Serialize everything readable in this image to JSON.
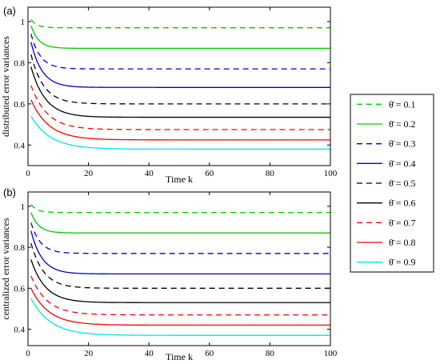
{
  "figure": {
    "legend_entries": [
      {
        "label": "θ̄ = 0.1",
        "color": "#00cc00",
        "style": "dashed"
      },
      {
        "label": "θ̄ = 0.2",
        "color": "#00cc00",
        "style": "solid"
      },
      {
        "label": "θ̄ = 0.3",
        "color": "#0000cc",
        "style": "dashed"
      },
      {
        "label": "θ̄ = 0.4",
        "color": "#0000cc",
        "style": "solid"
      },
      {
        "label": "θ̄ = 0.5",
        "color": "#000000",
        "style": "dashed"
      },
      {
        "label": "θ̄ = 0.6",
        "color": "#000000",
        "style": "solid"
      },
      {
        "label": "θ̄ = 0.7",
        "color": "#ff0000",
        "style": "dashed"
      },
      {
        "label": "θ̄ = 0.8",
        "color": "#ff0000",
        "style": "solid"
      },
      {
        "label": "θ̄ = 0.9",
        "color": "#00e5e5",
        "style": "solid"
      }
    ]
  },
  "chart_data": [
    {
      "type": "line",
      "panel_label": "(a)",
      "xlabel": "Time k",
      "ylabel": "distributed error variances",
      "xlim": [
        0,
        100
      ],
      "ylim": [
        0.3,
        1.07
      ],
      "xticks": [
        0,
        20,
        40,
        60,
        80,
        100
      ],
      "yticks": [
        0.4,
        0.6,
        0.8,
        1
      ],
      "ytick_labels": [
        "0.4",
        "0.6",
        "0.8",
        "1"
      ],
      "legend_position": "right, outside",
      "series": [
        {
          "name": "θ̄ = 0.1",
          "start": 1.01,
          "steady": 0.97
        },
        {
          "name": "θ̄ = 0.2",
          "start": 0.98,
          "steady": 0.87
        },
        {
          "name": "θ̄ = 0.3",
          "start": 0.94,
          "steady": 0.77
        },
        {
          "name": "θ̄ = 0.4",
          "start": 0.9,
          "steady": 0.68
        },
        {
          "name": "θ̄ = 0.5",
          "start": 0.84,
          "steady": 0.6
        },
        {
          "name": "θ̄ = 0.6",
          "start": 0.78,
          "steady": 0.535
        },
        {
          "name": "θ̄ = 0.7",
          "start": 0.69,
          "steady": 0.475
        },
        {
          "name": "θ̄ = 0.8",
          "start": 0.62,
          "steady": 0.425
        },
        {
          "name": "θ̄ = 0.9",
          "start": 0.54,
          "steady": 0.38
        }
      ]
    },
    {
      "type": "line",
      "panel_label": "(b)",
      "xlabel": "Time k",
      "ylabel": "centralized error variances",
      "xlim": [
        0,
        100
      ],
      "ylim": [
        0.32,
        1.07
      ],
      "xticks": [
        0,
        20,
        40,
        60,
        80,
        100
      ],
      "yticks": [
        0.4,
        0.6,
        0.8,
        1
      ],
      "ytick_labels": [
        "0.4",
        "0.6",
        "0.8",
        "1"
      ],
      "legend_position": "shared with panel (a)",
      "series": [
        {
          "name": "θ̄ = 0.1",
          "start": 1.01,
          "steady": 0.97
        },
        {
          "name": "θ̄ = 0.2",
          "start": 0.97,
          "steady": 0.87
        },
        {
          "name": "θ̄ = 0.3",
          "start": 0.92,
          "steady": 0.77
        },
        {
          "name": "θ̄ = 0.4",
          "start": 0.88,
          "steady": 0.67
        },
        {
          "name": "θ̄ = 0.5",
          "start": 0.82,
          "steady": 0.6
        },
        {
          "name": "θ̄ = 0.6",
          "start": 0.74,
          "steady": 0.53
        },
        {
          "name": "θ̄ = 0.7",
          "start": 0.66,
          "steady": 0.47
        },
        {
          "name": "θ̄ = 0.8",
          "start": 0.6,
          "steady": 0.42
        },
        {
          "name": "θ̄ = 0.9",
          "start": 0.55,
          "steady": 0.37
        }
      ]
    }
  ]
}
